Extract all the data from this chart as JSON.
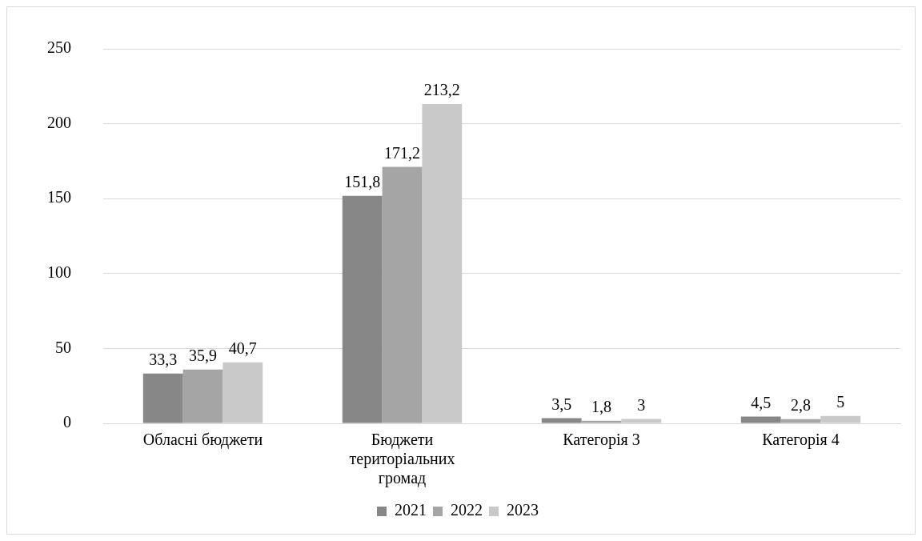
{
  "chart_data": {
    "type": "bar",
    "categories": [
      "Обласні бюджети",
      "Бюджети територіальних громад",
      "Категорія 3",
      "Категорія 4"
    ],
    "series": [
      {
        "name": "2021",
        "color": "#878787",
        "values": [
          33.3,
          151.8,
          3.5,
          4.5
        ],
        "value_labels": [
          "33,3",
          "151,8",
          "3,5",
          "4,5"
        ]
      },
      {
        "name": "2022",
        "color": "#a5a5a5",
        "values": [
          35.9,
          171.2,
          1.8,
          2.8
        ],
        "value_labels": [
          "35,9",
          "171,2",
          "1,8",
          "2,8"
        ]
      },
      {
        "name": "2023",
        "color": "#c9c9c9",
        "values": [
          40.7,
          213.2,
          3,
          5
        ],
        "value_labels": [
          "40,7",
          "213,2",
          "3",
          "5"
        ]
      }
    ],
    "ylim": [
      0,
      250
    ],
    "yticks": [
      0,
      50,
      100,
      150,
      200,
      250
    ],
    "grid": "y",
    "legend": "bottom"
  }
}
